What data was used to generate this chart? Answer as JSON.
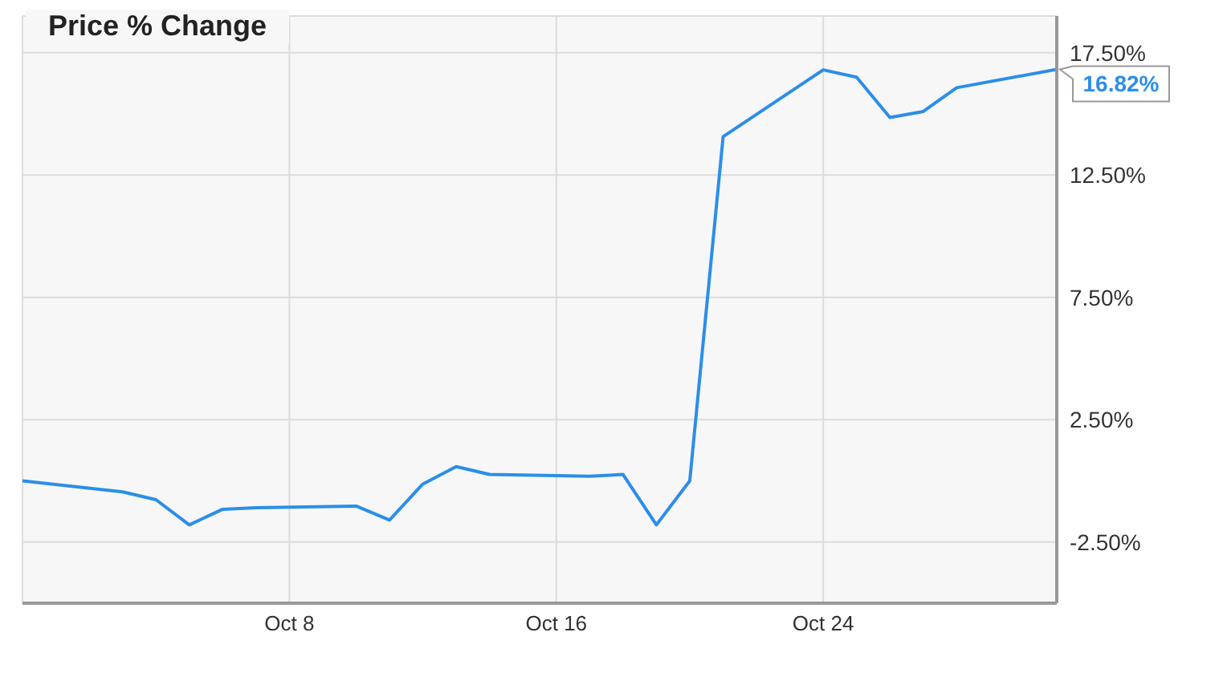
{
  "chart_data": {
    "type": "line",
    "title": "Price % Change",
    "x": [
      "--09-30",
      "--10-03",
      "--10-04",
      "--10-05",
      "--10-06",
      "--10-07",
      "--10-10",
      "--10-11",
      "--10-12",
      "--10-13",
      "--10-14",
      "--10-17",
      "--10-18",
      "--10-19",
      "--10-20",
      "--10-21",
      "--10-24",
      "--10-25",
      "--10-26",
      "--10-27",
      "--10-28",
      "--10-31"
    ],
    "series": [
      {
        "color": "#2b8ee8",
        "values": [
          0,
          -0.45,
          -0.77,
          -1.8,
          -1.16,
          -1.1,
          -1.03,
          -1.6,
          -0.13,
          0.58,
          0.26,
          0.19,
          0.26,
          -1.8,
          0,
          14.07,
          16.8,
          16.5,
          14.85,
          15.1,
          16.07,
          16.82
        ],
        "value_labels": [
          null,
          null,
          null,
          null,
          null,
          null,
          null,
          null,
          null,
          null,
          null,
          null,
          null,
          null,
          null,
          null,
          null,
          null,
          null,
          null,
          null,
          "16.82%"
        ]
      }
    ],
    "xlim": [
      "--09-30",
      "--10-31"
    ],
    "xticks": [
      {
        "value": "--10-08",
        "label": "Oct 8"
      },
      {
        "value": "--10-16",
        "label": "Oct 16"
      },
      {
        "value": "--10-24",
        "label": "Oct 24"
      }
    ],
    "ylim": [
      -5,
      19
    ],
    "yticks": [
      {
        "value": -2.5,
        "label": "-2.50%"
      },
      {
        "value": 2.5,
        "label": "2.50%"
      },
      {
        "value": 7.5,
        "label": "7.50%"
      },
      {
        "value": 12.5,
        "label": "12.50%"
      },
      {
        "value": 17.5,
        "label": "17.50%"
      }
    ],
    "grid": true,
    "marker": "none",
    "line_style": "solid",
    "legend": false
  }
}
